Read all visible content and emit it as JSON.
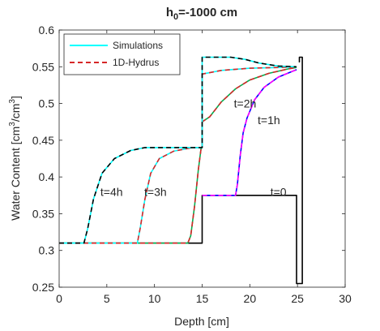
{
  "chart_data": {
    "type": "line",
    "title_base": "h",
    "title_sub": "0",
    "title_rest": "=-1000 cm",
    "xlabel": "Depth [cm]",
    "ylabel_parts": {
      "a": "Water Content [cm",
      "sup1": "3",
      "b": "/cm",
      "sup2": "3",
      "c": "]"
    },
    "xlim": [
      0,
      30
    ],
    "ylim": [
      0.25,
      0.6
    ],
    "xticks": [
      0,
      5,
      10,
      15,
      20,
      25,
      30
    ],
    "yticks": [
      0.25,
      0.3,
      0.35,
      0.4,
      0.45,
      0.5,
      0.55,
      0.6
    ],
    "ytick_labels": [
      "0.25",
      "0.3",
      "0.35",
      "0.4",
      "0.45",
      "0.5",
      "0.55",
      "0.6"
    ],
    "grid": false,
    "legend_position": "top-left",
    "legend": [
      {
        "label": "Simulations",
        "color": "#00ffff",
        "style": "solid"
      },
      {
        "label": "1D-Hydrus",
        "color": "#d62728",
        "style": "dashed"
      }
    ],
    "annotations": [
      {
        "text": "t=4h",
        "x": 5.5,
        "y": 0.38
      },
      {
        "text": "t=3h",
        "x": 10.1,
        "y": 0.38
      },
      {
        "text": "t=2h",
        "x": 19.5,
        "y": 0.5
      },
      {
        "text": "t=1h",
        "x": 22.0,
        "y": 0.4775
      },
      {
        "text": "t=0",
        "x": 23.0,
        "y": 0.38
      }
    ],
    "series": [
      {
        "key": "t0",
        "color": "#000000",
        "style": "solid",
        "points": [
          [
            0,
            0.31
          ],
          [
            15,
            0.31
          ],
          [
            15,
            0.375
          ],
          [
            24.9,
            0.375
          ],
          [
            24.9,
            0.255
          ],
          [
            25.5,
            0.255
          ],
          [
            25.5,
            0.563
          ],
          [
            25.2,
            0.563
          ],
          [
            25.2,
            0.556
          ]
        ]
      },
      {
        "key": "t1h",
        "color": "#0000ff",
        "style": "solid",
        "points": [
          [
            15,
            0.375
          ],
          [
            18.5,
            0.375
          ],
          [
            18.7,
            0.39
          ],
          [
            19.0,
            0.43
          ],
          [
            19.3,
            0.46
          ],
          [
            19.7,
            0.48
          ],
          [
            20.5,
            0.505
          ],
          [
            21.5,
            0.522
          ],
          [
            23,
            0.536
          ],
          [
            24.5,
            0.544
          ],
          [
            24.9,
            0.546
          ]
        ]
      },
      {
        "key": "t1h-overlay",
        "color": "#ff00ff",
        "style": "dashed",
        "points": [
          [
            15,
            0.375
          ],
          [
            18.5,
            0.375
          ],
          [
            18.7,
            0.39
          ],
          [
            19.0,
            0.43
          ],
          [
            19.3,
            0.46
          ],
          [
            19.7,
            0.48
          ],
          [
            20.5,
            0.505
          ],
          [
            21.5,
            0.522
          ],
          [
            23,
            0.536
          ],
          [
            24.5,
            0.544
          ],
          [
            24.9,
            0.546
          ]
        ]
      },
      {
        "key": "t2h",
        "color": "#00b050",
        "style": "solid",
        "points": [
          [
            0,
            0.31
          ],
          [
            13.5,
            0.31
          ],
          [
            13.8,
            0.32
          ],
          [
            14.2,
            0.36
          ],
          [
            14.6,
            0.41
          ],
          [
            14.9,
            0.44
          ],
          [
            15,
            0.44
          ],
          [
            15,
            0.475
          ],
          [
            15.8,
            0.482
          ],
          [
            17,
            0.502
          ],
          [
            18.5,
            0.52
          ],
          [
            20,
            0.532
          ],
          [
            22,
            0.541
          ],
          [
            24,
            0.547
          ],
          [
            24.9,
            0.549
          ]
        ]
      },
      {
        "key": "t2h-overlay",
        "color": "#d62728",
        "style": "dashed",
        "points": [
          [
            0,
            0.31
          ],
          [
            13.5,
            0.31
          ],
          [
            13.8,
            0.32
          ],
          [
            14.2,
            0.36
          ],
          [
            14.6,
            0.41
          ],
          [
            14.9,
            0.44
          ],
          [
            15,
            0.44
          ],
          [
            15,
            0.475
          ],
          [
            15.8,
            0.482
          ],
          [
            17,
            0.502
          ],
          [
            18.5,
            0.52
          ],
          [
            20,
            0.532
          ],
          [
            22,
            0.541
          ],
          [
            24,
            0.547
          ],
          [
            24.9,
            0.549
          ]
        ]
      },
      {
        "key": "t3h",
        "color": "#00ffff",
        "style": "solid",
        "points": [
          [
            0,
            0.31
          ],
          [
            8.2,
            0.31
          ],
          [
            8.5,
            0.33
          ],
          [
            9.0,
            0.37
          ],
          [
            9.6,
            0.405
          ],
          [
            10.5,
            0.425
          ],
          [
            12,
            0.435
          ],
          [
            14,
            0.44
          ],
          [
            15,
            0.44
          ],
          [
            15,
            0.54
          ],
          [
            17,
            0.545
          ],
          [
            20,
            0.548
          ],
          [
            23,
            0.549
          ],
          [
            24.9,
            0.55
          ]
        ]
      },
      {
        "key": "t3h-overlay",
        "color": "#d62728",
        "style": "dashed",
        "points": [
          [
            0,
            0.31
          ],
          [
            8.2,
            0.31
          ],
          [
            8.5,
            0.33
          ],
          [
            9.0,
            0.37
          ],
          [
            9.6,
            0.405
          ],
          [
            10.5,
            0.425
          ],
          [
            12,
            0.435
          ],
          [
            14,
            0.44
          ],
          [
            15,
            0.44
          ],
          [
            15,
            0.54
          ],
          [
            17,
            0.545
          ],
          [
            20,
            0.548
          ],
          [
            23,
            0.549
          ],
          [
            24.9,
            0.55
          ]
        ]
      },
      {
        "key": "t4h",
        "color": "#00ffff",
        "style": "solid",
        "points": [
          [
            0,
            0.31
          ],
          [
            2.6,
            0.31
          ],
          [
            3.0,
            0.33
          ],
          [
            3.6,
            0.37
          ],
          [
            4.5,
            0.405
          ],
          [
            5.8,
            0.425
          ],
          [
            7.5,
            0.436
          ],
          [
            9,
            0.44
          ],
          [
            15,
            0.44
          ],
          [
            15,
            0.563
          ],
          [
            18,
            0.563
          ],
          [
            19.5,
            0.56
          ],
          [
            21,
            0.555
          ],
          [
            23,
            0.551
          ],
          [
            24.9,
            0.55
          ]
        ]
      },
      {
        "key": "t4h-overlay",
        "color": "#000000",
        "style": "dashed",
        "points": [
          [
            0,
            0.31
          ],
          [
            2.6,
            0.31
          ],
          [
            3.0,
            0.33
          ],
          [
            3.6,
            0.37
          ],
          [
            4.5,
            0.405
          ],
          [
            5.8,
            0.425
          ],
          [
            7.5,
            0.436
          ],
          [
            9,
            0.44
          ],
          [
            15,
            0.44
          ],
          [
            15,
            0.563
          ],
          [
            18,
            0.563
          ],
          [
            19.5,
            0.56
          ],
          [
            21,
            0.555
          ],
          [
            23,
            0.551
          ],
          [
            24.9,
            0.55
          ]
        ]
      }
    ]
  }
}
